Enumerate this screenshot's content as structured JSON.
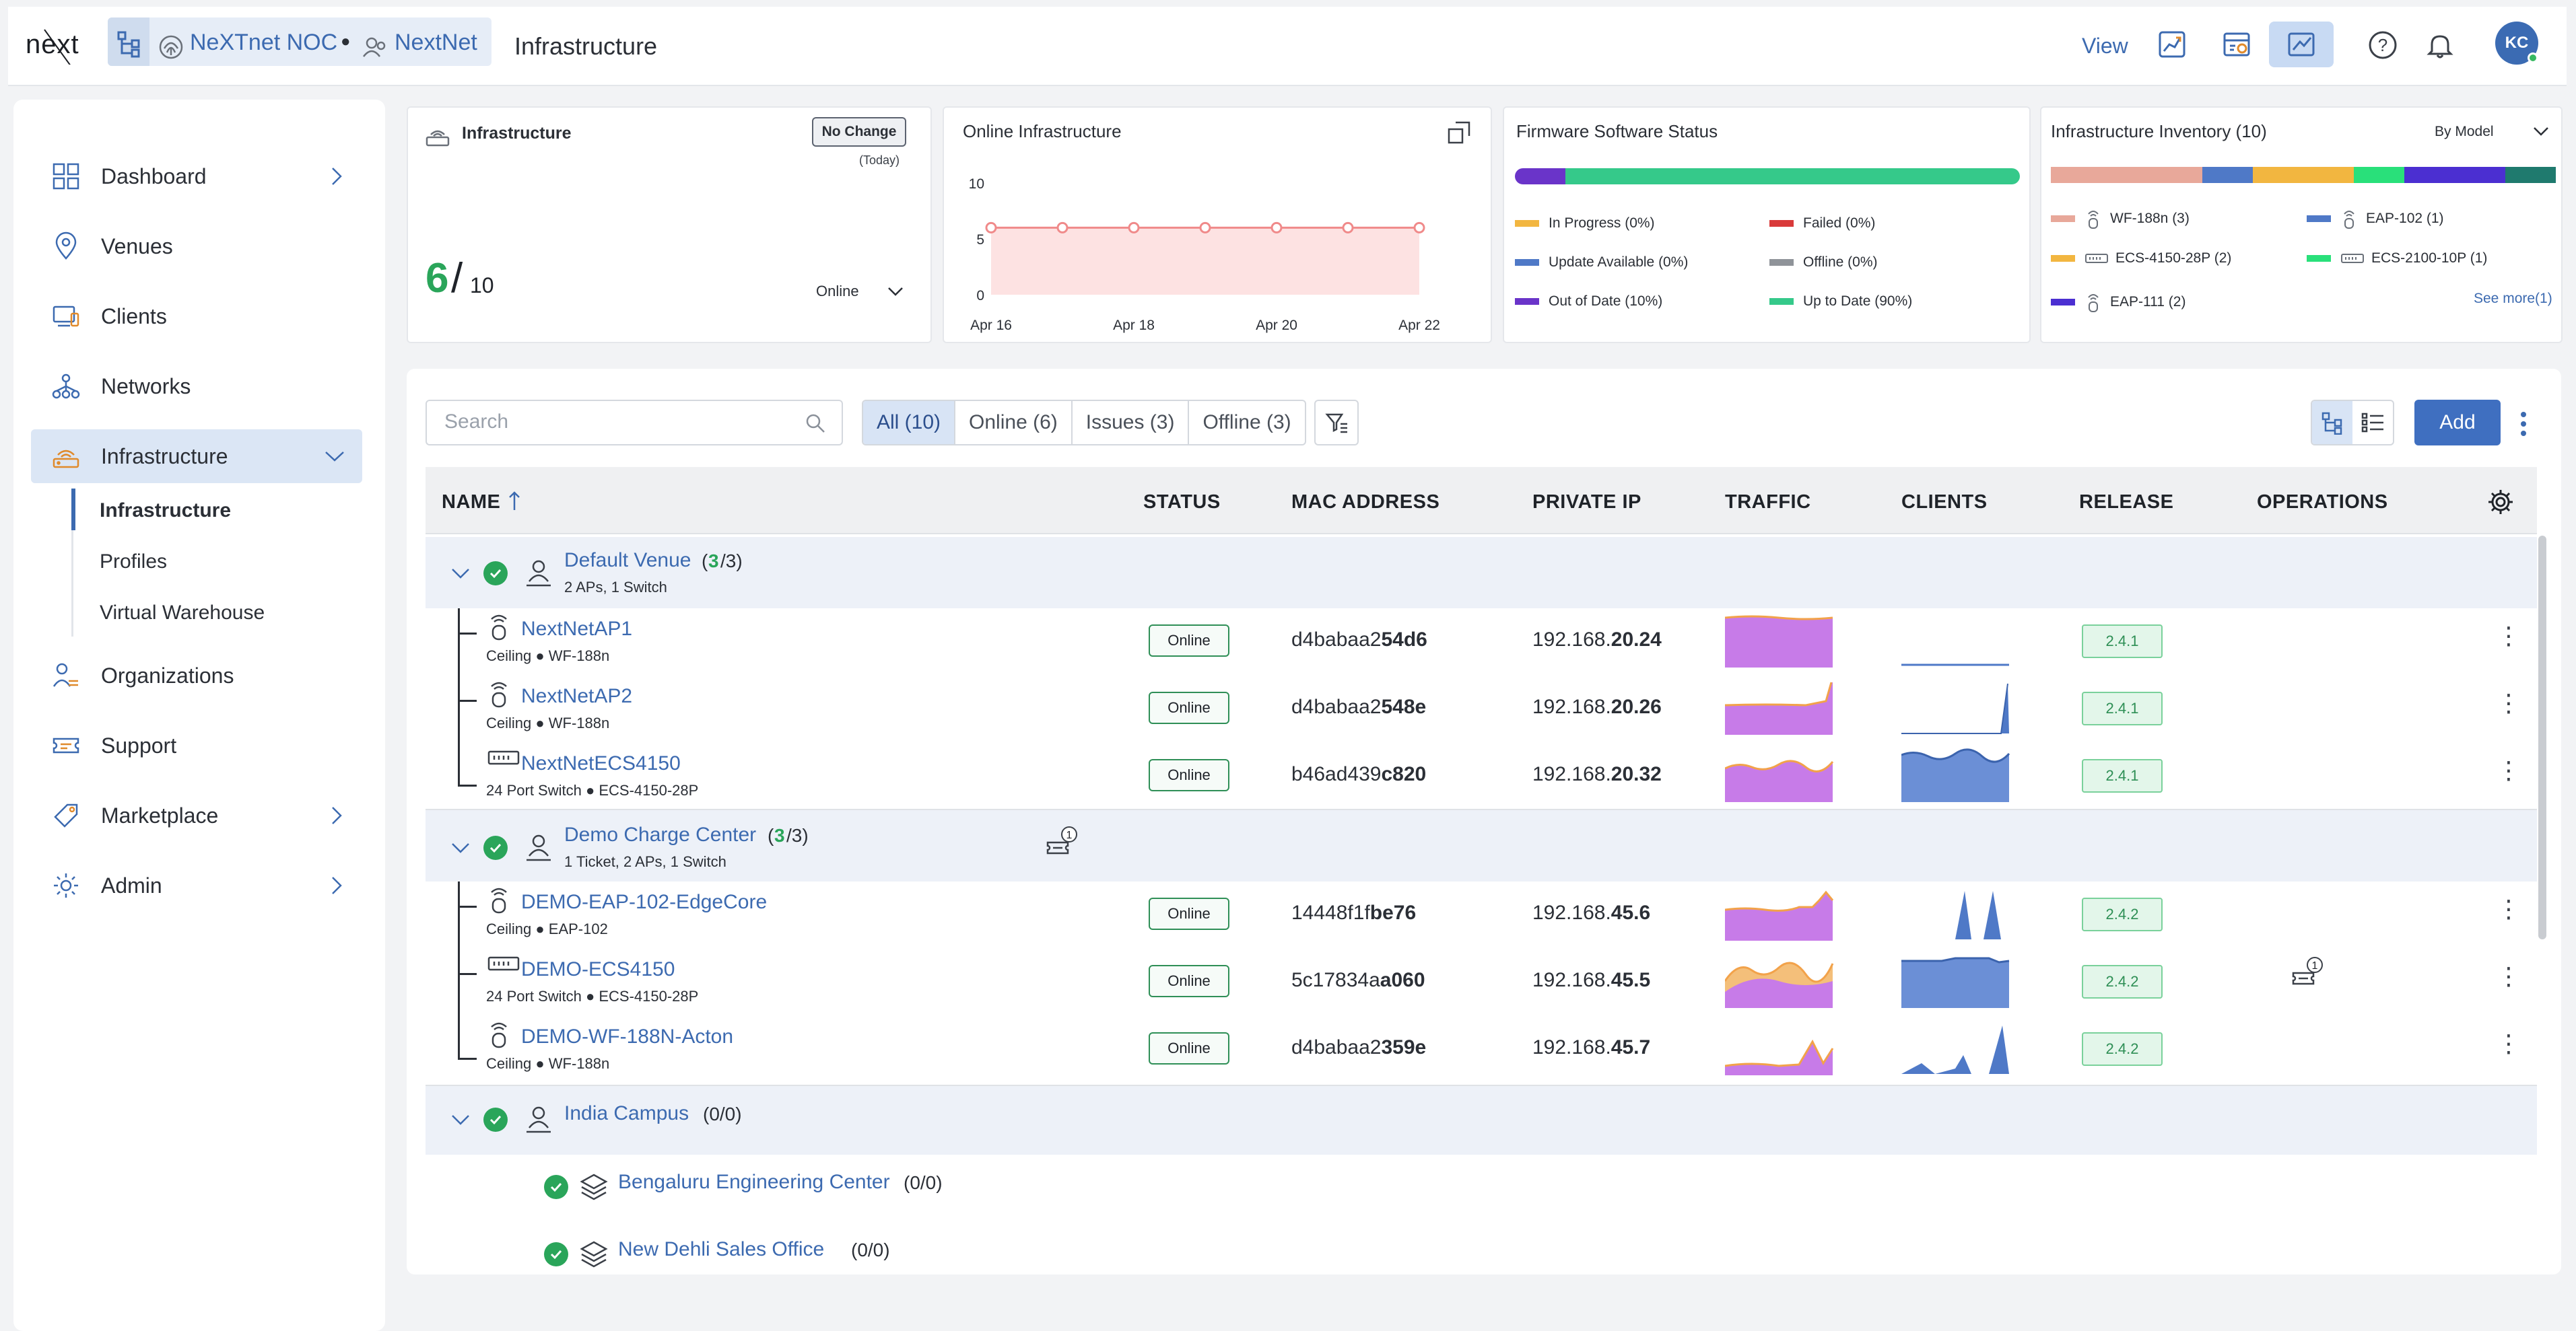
{
  "header": {
    "logo_text": "next",
    "crumb_1": "NeXTnet NOC",
    "crumb_2": "NextNet",
    "page_title": "Infrastructure",
    "view_label": "View",
    "avatar_initials": "KC"
  },
  "sidebar": {
    "items": [
      {
        "label": "Dashboard",
        "icon": "dashboard-icon"
      },
      {
        "label": "Venues",
        "icon": "location-pin-icon"
      },
      {
        "label": "Clients",
        "icon": "clients-icon"
      },
      {
        "label": "Networks",
        "icon": "network-icon"
      },
      {
        "label": "Infrastructure",
        "icon": "wifi-router-icon"
      },
      {
        "label": "Organizations",
        "icon": "organizations-icon"
      },
      {
        "label": "Support",
        "icon": "ticket-icon"
      },
      {
        "label": "Marketplace",
        "icon": "tag-icon"
      },
      {
        "label": "Admin",
        "icon": "gear-icon"
      }
    ],
    "sub_items": [
      "Infrastructure",
      "Profiles",
      "Virtual Warehouse"
    ]
  },
  "cards": {
    "infra": {
      "title": "Infrastructure",
      "badge": "No Change",
      "badge_sub": "(Today)",
      "count": "6",
      "total": "10",
      "selector": "Online"
    },
    "online": {
      "title": "Online Infrastructure",
      "x_ticks": [
        "Apr 16",
        "Apr 18",
        "Apr 20",
        "Apr 22"
      ],
      "y_ticks": [
        "10",
        "5",
        "0"
      ]
    },
    "firmware": {
      "title": "Firmware Software Status",
      "legend": [
        {
          "label": "In Progress (0%)",
          "color": "#f2b640"
        },
        {
          "label": "Failed (0%)",
          "color": "#d93a3a"
        },
        {
          "label": "Update Available (0%)",
          "color": "#4f79c7"
        },
        {
          "label": "Offline (0%)",
          "color": "#8f9399"
        },
        {
          "label": "Out of Date (10%)",
          "color": "#6a34c9"
        },
        {
          "label": "Up to Date (90%)",
          "color": "#35c98a"
        }
      ]
    },
    "inventory": {
      "title": "Infrastructure Inventory (10)",
      "selector": "By Model",
      "legend": [
        {
          "label": "WF-188n (3)",
          "color": "#e8a89a"
        },
        {
          "label": "EAP-102 (1)",
          "color": "#4f79c7"
        },
        {
          "label": "ECS-4150-28P (2)",
          "color": "#f2b640"
        },
        {
          "label": "ECS-2100-10P (1)",
          "color": "#29e07a"
        },
        {
          "label": "EAP-111 (2)",
          "color": "#4b2fd1"
        }
      ],
      "see_more": "See more(1)"
    }
  },
  "chart_data": {
    "type": "line",
    "title": "Online Infrastructure",
    "x": [
      "Apr 16",
      "Apr 17",
      "Apr 18",
      "Apr 19",
      "Apr 20",
      "Apr 21",
      "Apr 22"
    ],
    "series": [
      {
        "values": [
          6,
          6,
          6,
          6,
          6,
          6,
          6
        ]
      }
    ],
    "ylim": [
      0,
      10
    ]
  },
  "toolbar": {
    "search_placeholder": "Search",
    "filters": [
      "All (10)",
      "Online (6)",
      "Issues (3)",
      "Offline (3)"
    ],
    "add_label": "Add"
  },
  "table": {
    "headers": [
      "NAME",
      "STATUS",
      "MAC ADDRESS",
      "PRIVATE IP",
      "TRAFFIC",
      "CLIENTS",
      "RELEASE",
      "OPERATIONS"
    ],
    "venues": [
      {
        "name": "Default Venue",
        "count_open": "(",
        "count_online": "3",
        "count_rest": "/3)",
        "sub": "2 APs, 1 Switch",
        "devices": [
          {
            "name": "NextNetAP1",
            "sub": "Ceiling ● WF-188n",
            "status": "Online",
            "mac_a": "d4babaa2",
            "mac_b": "54d6",
            "ip_a": "192.168.",
            "ip_b": "20.24",
            "release": "2.4.1"
          },
          {
            "name": "NextNetAP2",
            "sub": "Ceiling ● WF-188n",
            "status": "Online",
            "mac_a": "d4babaa2",
            "mac_b": "548e",
            "ip_a": "192.168.",
            "ip_b": "20.26",
            "release": "2.4.1"
          },
          {
            "name": "NextNetECS4150",
            "sub": "24 Port Switch ● ECS-4150-28P",
            "status": "Online",
            "mac_a": "b46ad439",
            "mac_b": "c820",
            "ip_a": "192.168.",
            "ip_b": "20.32",
            "release": "2.4.1"
          }
        ]
      },
      {
        "name": "Demo Charge Center",
        "count_open": "(",
        "count_online": "3",
        "count_rest": "/3)",
        "sub": "1 Ticket, 2 APs, 1 Switch",
        "ticket_count": "1",
        "devices": [
          {
            "name": "DEMO-EAP-102-EdgeCore",
            "sub": "Ceiling ● EAP-102",
            "status": "Online",
            "mac_a": "14448f1f",
            "mac_b": "be76",
            "ip_a": "192.168.",
            "ip_b": "45.6",
            "release": "2.4.2"
          },
          {
            "name": "DEMO-ECS4150",
            "sub": "24 Port Switch ● ECS-4150-28P",
            "status": "Online",
            "mac_a": "5c17834a",
            "mac_b": "a060",
            "ip_a": "192.168.",
            "ip_b": "45.5",
            "release": "2.4.2",
            "ticket_count": "1"
          },
          {
            "name": "DEMO-WF-188N-Acton",
            "sub": "Ceiling ● WF-188n",
            "status": "Online",
            "mac_a": "d4babaa2",
            "mac_b": "359e",
            "ip_a": "192.168.",
            "ip_b": "45.7",
            "release": "2.4.2"
          }
        ]
      },
      {
        "name": "India Campus",
        "count": "(0/0)",
        "children": [
          {
            "name": "Bengaluru Engineering Center",
            "count": "(0/0)"
          },
          {
            "name": "New Dehli Sales Office",
            "count": "(0/0)"
          }
        ]
      }
    ]
  },
  "colors": {
    "accent": "#3f6fc0",
    "link": "#3c6ab0",
    "online_green": "#2aa55a",
    "traffic_purple": "#c77be8",
    "traffic_orange": "#f2a24a",
    "clients_blue": "#4f79c7"
  }
}
